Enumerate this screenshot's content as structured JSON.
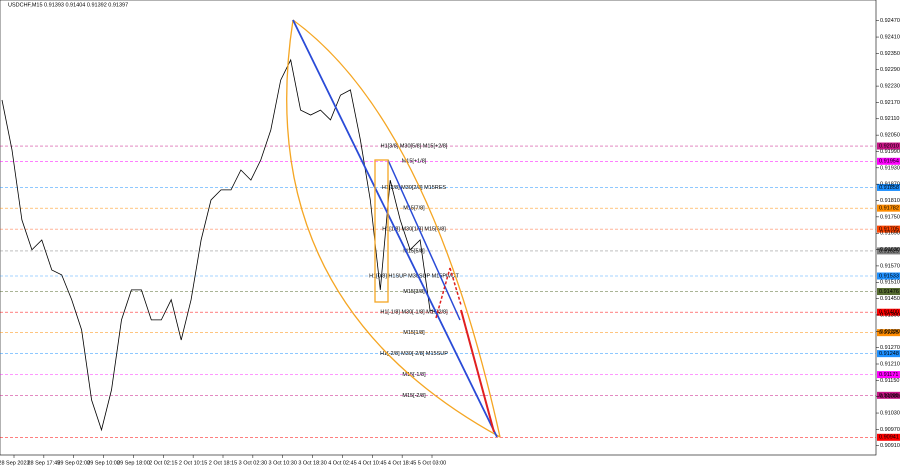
{
  "chart_data": {
    "type": "line",
    "title": "USDCHF,M15  0.91393 0.91404 0.91392 0.91397",
    "values": [
      0.92179,
      0.91996,
      0.91739,
      0.91629,
      0.91665,
      0.91555,
      0.91537,
      0.91446,
      0.91335,
      0.91078,
      0.90968,
      0.91115,
      0.91372,
      0.91482,
      0.91482,
      0.91372,
      0.91372,
      0.91446,
      0.91298,
      0.91446,
      0.91665,
      0.91812,
      0.91849,
      0.91849,
      0.91922,
      0.91885,
      0.91959,
      0.92069,
      0.92252,
      0.92326,
      0.92142,
      0.92124,
      0.92142,
      0.92106,
      0.92197,
      0.92216,
      0.92032,
      0.91812,
      0.91482,
      0.91885,
      0.91739,
      0.91629,
      0.91665,
      0.91408,
      0.91397
    ],
    "color": "#000000",
    "ylim": [
      0.90876,
      0.92546
    ],
    "yticks": [
      {
        "value": 0.9247,
        "label": "0.92470"
      },
      {
        "value": 0.9241,
        "label": "0.92410"
      },
      {
        "value": 0.9235,
        "label": "0.92350"
      },
      {
        "value": 0.9229,
        "label": "0.92290"
      },
      {
        "value": 0.9223,
        "label": "0.92230"
      },
      {
        "value": 0.9217,
        "label": "0.92170"
      },
      {
        "value": 0.9211,
        "label": "0.92110"
      },
      {
        "value": 0.9205,
        "label": "0.92050"
      },
      {
        "value": 0.9199,
        "label": "0.91990"
      },
      {
        "value": 0.9193,
        "label": "0.91930"
      },
      {
        "value": 0.9187,
        "label": "0.91870"
      },
      {
        "value": 0.9181,
        "label": "0.91810"
      },
      {
        "value": 0.9175,
        "label": "0.91750"
      },
      {
        "value": 0.9169,
        "label": "0.91690"
      },
      {
        "value": 0.9163,
        "label": "0.91630"
      },
      {
        "value": 0.9157,
        "label": "0.91570"
      },
      {
        "value": 0.9151,
        "label": "0.91510"
      },
      {
        "value": 0.9145,
        "label": "0.91450"
      },
      {
        "value": 0.9139,
        "label": "0.91390"
      },
      {
        "value": 0.9133,
        "label": "0.91330"
      },
      {
        "value": 0.9127,
        "label": "0.91270"
      },
      {
        "value": 0.9121,
        "label": "0.91210"
      },
      {
        "value": 0.9115,
        "label": "0.91150"
      },
      {
        "value": 0.9109,
        "label": "0.91090"
      },
      {
        "value": 0.9103,
        "label": "0.91030"
      },
      {
        "value": 0.9097,
        "label": "0.90970"
      },
      {
        "value": 0.9091,
        "label": "0.90910"
      }
    ],
    "xticks": [
      "28 Sep 2023",
      "28 Sep 17:45",
      "29 Sep 02:00",
      "29 Sep 10:00",
      "29 Sep 18:00",
      "2 Oct 02:15",
      "2 Oct 10:15",
      "2 Oct 18:15",
      "3 Oct 02:30",
      "3 Oct 10:30",
      "3 Oct 18:30",
      "4 Oct 02:45",
      "4 Oct 10:45",
      "4 Oct 18:45",
      "5 Oct 03:00"
    ],
    "levels": [
      {
        "value": 0.9201,
        "label": "0.92010",
        "color": "#c71585",
        "text": "H1[3/8] M30[5/8] M15[+2/8]"
      },
      {
        "value": 0.91954,
        "label": "0.91954",
        "color": "#ff00ff",
        "text": "M15[+1/8]"
      },
      {
        "value": 0.91858,
        "label": "0.91858",
        "color": "#1e90ff",
        "text": "H1[2/8] M30[2/8] M15RES"
      },
      {
        "value": 0.91782,
        "label": "0.91782",
        "color": "#ff8c00",
        "text": "M15[7/8]"
      },
      {
        "value": 0.91705,
        "label": "0.91705",
        "color": "#ff4500",
        "text": "H1[1/8] M30[1/8] M15[6/8]"
      },
      {
        "value": 0.91625,
        "label": "0.91625",
        "color": "#808080",
        "text": "M15[5/8]"
      },
      {
        "value": 0.91533,
        "label": "0.91533",
        "color": "#1e90ff",
        "text": "H1[0/8] H1SUP M30SUP M15PIVOT"
      },
      {
        "value": 0.91476,
        "label": "0.91476",
        "color": "#556b2f",
        "text": "M15[3/8]"
      },
      {
        "value": 0.914,
        "label": "0.91400",
        "color": "#ff0000",
        "text": "H1[-1/8] M30[-1/8] M15[2/8]"
      },
      {
        "value": 0.91325,
        "label": "0.91325",
        "color": "#ff8c00",
        "text": "M15[1/8]"
      },
      {
        "value": 0.91248,
        "label": "0.91248",
        "color": "#1e90ff",
        "text": "H1[-2/8] M30[-2/8] M15SUP"
      },
      {
        "value": 0.91171,
        "label": "0.91171",
        "color": "#ff00ff",
        "text": "M15[-1/8]"
      },
      {
        "value": 0.91095,
        "label": "0.91095",
        "color": "#c71585",
        "text": "M15[-2/8]"
      },
      {
        "value": 0.90941,
        "label": "0.90941",
        "color": "#ff0000"
      }
    ]
  }
}
